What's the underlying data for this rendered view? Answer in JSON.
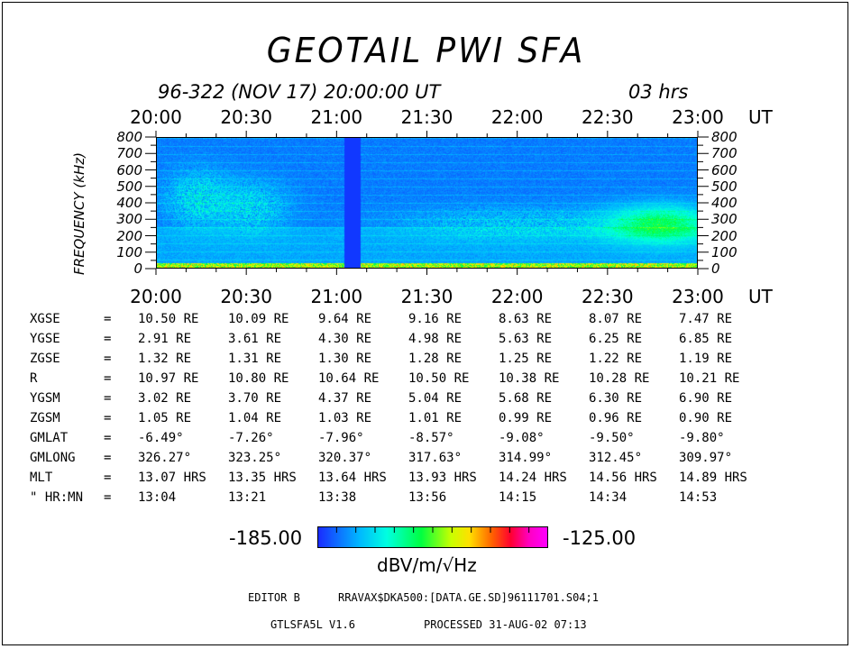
{
  "chart_data": {
    "type": "heatmap",
    "title": "GEOTAIL  PWI  SFA",
    "date_line": "96-322 (NOV 17) 20:00:00  UT",
    "duration": "03 hrs",
    "x_tick_labels": [
      "20:00",
      "20:30",
      "21:00",
      "21:30",
      "22:00",
      "22:30",
      "23:00"
    ],
    "x_unit": "UT",
    "ylabel": "FREQUENCY (kHz)",
    "y_tick_labels": [
      "800",
      "700",
      "600",
      "500",
      "400",
      "300",
      "200",
      "100",
      "0"
    ],
    "ylim": [
      0,
      800
    ],
    "colorbar": {
      "min": "-185.00",
      "max": "-125.00",
      "unit": "dBV/m/√Hz"
    },
    "ephemeris": [
      {
        "label": "XGSE",
        "eq": "=",
        "values": [
          "10.50 RE",
          "10.09 RE",
          "9.64 RE",
          "9.16 RE",
          "8.63 RE",
          "8.07 RE",
          "7.47 RE"
        ]
      },
      {
        "label": "YGSE",
        "eq": "=",
        "values": [
          "2.91 RE",
          "3.61 RE",
          "4.30 RE",
          "4.98 RE",
          "5.63 RE",
          "6.25 RE",
          "6.85 RE"
        ]
      },
      {
        "label": "ZGSE",
        "eq": "=",
        "values": [
          "1.32 RE",
          "1.31 RE",
          "1.30 RE",
          "1.28 RE",
          "1.25 RE",
          "1.22 RE",
          "1.19 RE"
        ]
      },
      {
        "label": "R",
        "eq": "=",
        "values": [
          "10.97 RE",
          "10.80 RE",
          "10.64 RE",
          "10.50 RE",
          "10.38 RE",
          "10.28 RE",
          "10.21 RE"
        ]
      },
      {
        "label": "YGSM",
        "eq": "=",
        "values": [
          "3.02 RE",
          "3.70 RE",
          "4.37 RE",
          "5.04 RE",
          "5.68 RE",
          "6.30 RE",
          "6.90 RE"
        ]
      },
      {
        "label": "ZGSM",
        "eq": "=",
        "values": [
          "1.05 RE",
          "1.04 RE",
          "1.03 RE",
          "1.01 RE",
          "0.99 RE",
          "0.96 RE",
          "0.90 RE"
        ]
      },
      {
        "label": "GMLAT",
        "eq": "=",
        "values": [
          "-6.49°",
          "-7.26°",
          "-7.96°",
          "-8.57°",
          "-9.08°",
          "-9.50°",
          "-9.80°"
        ]
      },
      {
        "label": "GMLONG",
        "eq": "=",
        "values": [
          "326.27°",
          "323.25°",
          "320.37°",
          "317.63°",
          "314.99°",
          "312.45°",
          "309.97°"
        ]
      },
      {
        "label": "MLT",
        "eq": "=",
        "values": [
          "13.07 HRS",
          "13.35 HRS",
          "13.64 HRS",
          "13.93 HRS",
          "14.24 HRS",
          "14.56 HRS",
          "14.89 HRS"
        ]
      },
      {
        "label": "\" HR:MN",
        "eq": "=",
        "values": [
          "13:04",
          "13:21",
          "13:38",
          "13:56",
          "14:15",
          "14:34",
          "14:53"
        ]
      }
    ]
  },
  "footer": {
    "editor": "EDITOR B",
    "path": "RRAVAX$DKA500:[DATA.GE.SD]96111701.S04;1",
    "program": "GTLSFA5L V1.6",
    "processed": "PROCESSED 31-AUG-02   07:13"
  }
}
